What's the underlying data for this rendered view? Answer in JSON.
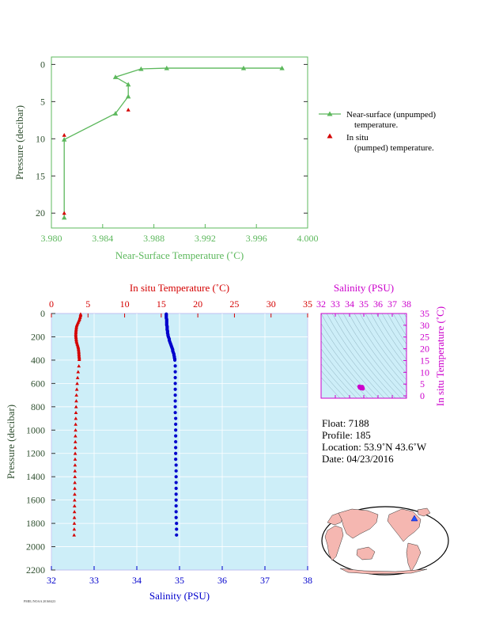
{
  "colors": {
    "green": "#5cb85c",
    "red": "#d40000",
    "blue": "#0000cc",
    "magenta": "#cc00cc",
    "panel_bg": "#cdeef8",
    "axis_dark": "#2f4f2f"
  },
  "chart_data": [
    {
      "type": "line",
      "xlabel": "Near-Surface Temperature (˚C)",
      "ylabel": "Pressure (decibar)",
      "xlim": [
        3.98,
        4.0
      ],
      "ylim": [
        22,
        -1
      ],
      "xticks": [
        "3.980",
        "3.984",
        "3.988",
        "3.992",
        "3.996",
        "4.000"
      ],
      "yticks": [
        "0",
        "5",
        "10",
        "15",
        "20"
      ],
      "series": [
        {
          "name": "Near-surface (unpumped) temperature.",
          "marker": "triangle",
          "x": [
            3.981,
            3.981,
            3.985,
            3.986,
            3.986,
            3.985,
            3.987,
            3.989,
            3.995,
            3.998
          ],
          "y": [
            20.6,
            10.1,
            6.6,
            4.3,
            2.7,
            1.7,
            0.6,
            0.5,
            0.5,
            0.5
          ]
        },
        {
          "name": "In situ (pumped) temperature.",
          "marker": "triangle",
          "x": [
            3.981,
            3.986,
            3.981
          ],
          "y": [
            20.0,
            6.1,
            9.5
          ]
        }
      ]
    },
    {
      "type": "scatter",
      "xlabel": "Salinity (PSU)",
      "x2label": "In situ Temperature (˚C)",
      "ylabel": "Pressure (decibar)",
      "xlim": [
        32,
        38
      ],
      "x2lim": [
        0,
        35
      ],
      "ylim": [
        2200,
        0
      ],
      "xticks": [
        "32",
        "33",
        "34",
        "35",
        "36",
        "37",
        "38"
      ],
      "x2ticks": [
        "0",
        "5",
        "10",
        "15",
        "20",
        "25",
        "30",
        "35"
      ],
      "yticks": [
        "0",
        "200",
        "400",
        "600",
        "800",
        "1000",
        "1200",
        "1400",
        "1600",
        "1800",
        "2000",
        "2200"
      ],
      "series": [
        {
          "name": "In situ Temperature (˚C)",
          "axis": "top",
          "marker": "triangle",
          "pressure": [
            5,
            15,
            25,
            35,
            45,
            55,
            65,
            75,
            85,
            95,
            105,
            115,
            125,
            135,
            145,
            155,
            165,
            175,
            185,
            195,
            205,
            215,
            225,
            235,
            245,
            255,
            265,
            275,
            285,
            295,
            305,
            315,
            325,
            335,
            345,
            355,
            365,
            375,
            385,
            395,
            450,
            500,
            550,
            600,
            650,
            700,
            750,
            800,
            850,
            900,
            950,
            1000,
            1050,
            1100,
            1150,
            1200,
            1250,
            1300,
            1350,
            1400,
            1450,
            1500,
            1550,
            1600,
            1650,
            1700,
            1750,
            1800,
            1850,
            1900
          ],
          "values": [
            3.99,
            3.99,
            3.95,
            3.9,
            3.85,
            3.8,
            3.72,
            3.65,
            3.58,
            3.5,
            3.45,
            3.42,
            3.4,
            3.38,
            3.36,
            3.35,
            3.34,
            3.33,
            3.33,
            3.34,
            3.36,
            3.38,
            3.4,
            3.42,
            3.45,
            3.5,
            3.55,
            3.6,
            3.65,
            3.68,
            3.7,
            3.72,
            3.74,
            3.75,
            3.76,
            3.77,
            3.78,
            3.8,
            3.82,
            3.8,
            3.75,
            3.65,
            3.58,
            3.52,
            3.47,
            3.42,
            3.4,
            3.37,
            3.35,
            3.33,
            3.31,
            3.3,
            3.28,
            3.27,
            3.26,
            3.25,
            3.24,
            3.23,
            3.22,
            3.21,
            3.2,
            3.19,
            3.18,
            3.17,
            3.16,
            3.15,
            3.14,
            3.13,
            3.12,
            3.1
          ]
        },
        {
          "name": "Salinity (PSU)",
          "axis": "bottom",
          "marker": "dot",
          "pressure": [
            5,
            12,
            20,
            30,
            40,
            50,
            60,
            70,
            80,
            90,
            100,
            110,
            120,
            130,
            140,
            150,
            160,
            170,
            180,
            190,
            200,
            210,
            220,
            230,
            240,
            250,
            260,
            270,
            280,
            290,
            300,
            310,
            320,
            330,
            340,
            350,
            360,
            370,
            380,
            390,
            400,
            450,
            500,
            550,
            600,
            650,
            700,
            750,
            800,
            850,
            900,
            950,
            1000,
            1050,
            1100,
            1150,
            1200,
            1250,
            1300,
            1350,
            1400,
            1450,
            1500,
            1550,
            1600,
            1650,
            1700,
            1750,
            1800,
            1850,
            1900
          ],
          "values": [
            34.69,
            34.69,
            34.69,
            34.69,
            34.69,
            34.7,
            34.7,
            34.7,
            34.7,
            34.7,
            34.7,
            34.71,
            34.71,
            34.71,
            34.71,
            34.72,
            34.72,
            34.72,
            34.73,
            34.73,
            34.74,
            34.75,
            34.76,
            34.76,
            34.77,
            34.78,
            34.79,
            34.8,
            34.81,
            34.82,
            34.83,
            34.84,
            34.84,
            34.85,
            34.86,
            34.87,
            34.87,
            34.88,
            34.88,
            34.89,
            34.89,
            34.9,
            34.9,
            34.9,
            34.9,
            34.9,
            34.9,
            34.9,
            34.9,
            34.9,
            34.91,
            34.91,
            34.91,
            34.91,
            34.91,
            34.91,
            34.91,
            34.91,
            34.92,
            34.92,
            34.92,
            34.92,
            34.92,
            34.92,
            34.92,
            34.92,
            34.92,
            34.92,
            34.93,
            34.93,
            34.93
          ]
        }
      ]
    },
    {
      "type": "scatter",
      "xlabel": "Salinity (PSU)",
      "ylabel": "In situ Temperature (˚C)",
      "xlim": [
        32,
        38
      ],
      "ylim": [
        -1,
        35
      ],
      "xticks": [
        "32",
        "33",
        "34",
        "35",
        "36",
        "37",
        "38"
      ],
      "yticks": [
        "0",
        "5",
        "10",
        "15",
        "20",
        "25",
        "30",
        "35"
      ],
      "series": [
        {
          "name": "T-S",
          "marker": "dot",
          "x": [
            34.69,
            34.72,
            34.78,
            34.84,
            34.89,
            34.9,
            34.91,
            34.93,
            34.75,
            34.82
          ],
          "y": [
            3.99,
            3.5,
            3.36,
            3.74,
            3.8,
            3.5,
            3.3,
            3.1,
            3.6,
            3.2
          ]
        }
      ]
    }
  ],
  "info": {
    "float": "Float: 7188",
    "profile": "Profile: 185",
    "location": "Location: 53.9˚N 43.6˚W",
    "date": "Date: 04/23/2016"
  },
  "map": {
    "marker_lat": 53.9,
    "marker_lon": -43.6
  },
  "footer_note": "PMEL/NOAA 20160423"
}
